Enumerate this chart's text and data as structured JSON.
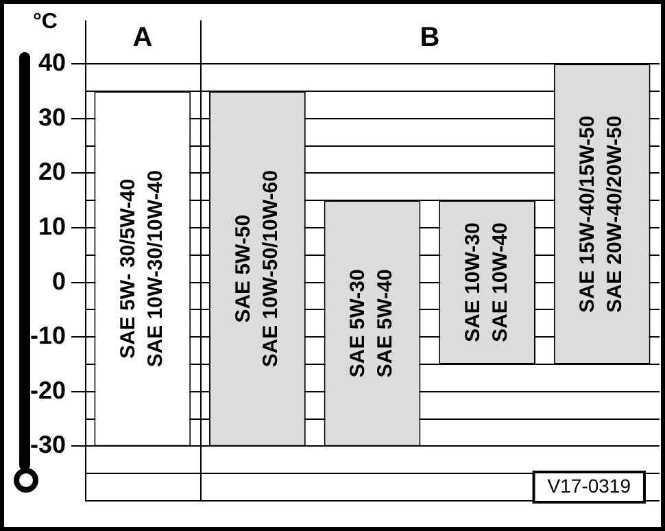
{
  "chart_data": {
    "type": "bar",
    "ylabel": "°C",
    "categories": [
      "SAE 5W- 30/5W-40\nSAE 10W-30/10W-40",
      "SAE 5W-50\nSAE 10W-50/10W-60",
      "SAE 5W-30\nSAE 5W-40",
      "SAE 10W-30\nSAE 10W-40",
      "SAE 15W-40/15W-50\nSAE 20W-40/20W-50"
    ],
    "base": [
      -30,
      -30,
      -30,
      -15,
      -15
    ],
    "values": [
      65,
      65,
      45,
      30,
      55
    ],
    "colors": [
      "#ffffff",
      "#dcdcdc",
      "#dcdcdc",
      "#dcdcdc",
      "#dcdcdc"
    ],
    "ylim": [
      -40,
      48
    ],
    "yticks": [
      {
        "value": -40,
        "label": null
      },
      {
        "value": -35,
        "label": null
      },
      -30,
      {
        "value": -25,
        "label": null
      },
      -20,
      {
        "value": -15,
        "label": null
      },
      -10,
      {
        "value": -5,
        "label": null
      },
      0,
      {
        "value": 5,
        "label": null
      },
      10,
      {
        "value": 15,
        "label": null
      },
      20,
      {
        "value": 25,
        "label": null
      },
      30,
      {
        "value": 35,
        "label": null
      },
      40
    ],
    "grid": "y",
    "legend": false,
    "tick_labels": "y",
    "annotations": [
      "A",
      "B",
      "V17-0319"
    ]
  }
}
